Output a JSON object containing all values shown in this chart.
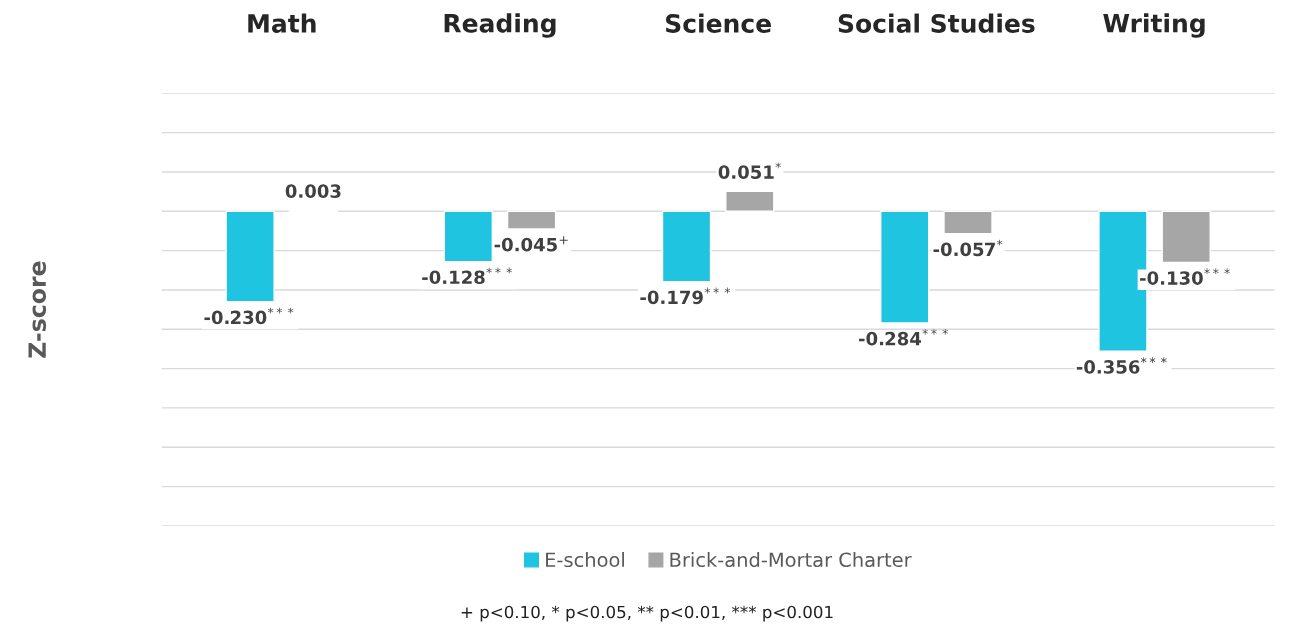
{
  "chart_data": {
    "type": "bar",
    "ylabel": "Z-score",
    "categories": [
      "Math",
      "Reading",
      "Science",
      "Social Studies",
      "Writing"
    ],
    "series": [
      {
        "name": "E-school",
        "color": "#1fc5e0",
        "values": [
          -0.23,
          -0.128,
          -0.179,
          -0.284,
          -0.356
        ],
        "value_labels": [
          "-0.230$^{***}$",
          "-0.128$^{***}$",
          "-0.179$^{***}$",
          "-0.284$^{***}$",
          "-0.356$^{***}$"
        ]
      },
      {
        "name": "Brick-and-Mortar Charter",
        "color": "#a6a6a6",
        "values": [
          0.003,
          -0.045,
          0.051,
          -0.057,
          -0.13
        ],
        "value_labels": [
          "0.003",
          "-0.045$^{+}$",
          "0.051$^{*}$",
          "-0.057$^{*}$",
          "-0.130$^{***}$"
        ]
      }
    ],
    "ylim": [
      -0.8,
      0.3
    ],
    "yticks": [
      {
        "value": -0.8,
        "label": null
      },
      {
        "value": -0.7,
        "label": null
      },
      {
        "value": -0.6,
        "label": null
      },
      {
        "value": -0.5,
        "label": null
      },
      {
        "value": -0.4,
        "label": null
      },
      {
        "value": -0.3,
        "label": null
      },
      {
        "value": -0.2,
        "label": null
      },
      {
        "value": -0.1,
        "label": null
      },
      {
        "value": 0,
        "label": null
      },
      {
        "value": 0.1,
        "label": null
      },
      {
        "value": 0.2,
        "label": null
      },
      {
        "value": 0.3,
        "label": null
      }
    ],
    "tick_labels": "x",
    "grid": "y",
    "legend": "bottom",
    "annotations": [
      "+ p<0.10, * p<0.05, ** p<0.01, *** p<0.001"
    ]
  }
}
